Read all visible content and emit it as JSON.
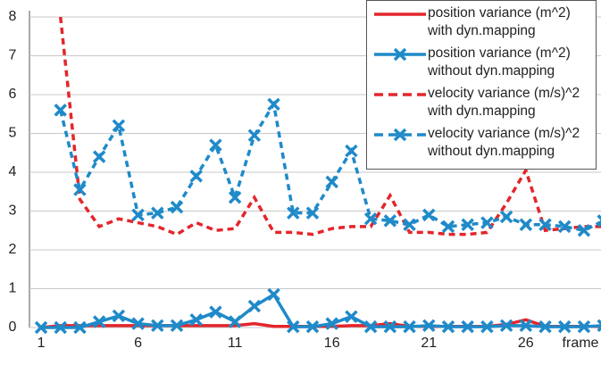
{
  "chart_data": {
    "type": "line",
    "x": [
      1,
      2,
      3,
      4,
      5,
      6,
      7,
      8,
      9,
      10,
      11,
      12,
      13,
      14,
      15,
      16,
      17,
      18,
      19,
      20,
      21,
      22,
      23,
      24,
      25,
      26,
      27,
      28,
      29,
      30
    ],
    "xlabel": "frame",
    "xlim": [
      0.4,
      30.2
    ],
    "xticks": [
      1,
      6,
      11,
      16,
      21,
      26
    ],
    "ylim": [
      0,
      8
    ],
    "yticks": [
      0,
      1,
      2,
      3,
      4,
      5,
      6,
      7,
      8
    ],
    "grid": true,
    "legend": "upper right",
    "series": [
      {
        "name": "position variance (m^2) with dyn.mapping",
        "color": "#e3262b",
        "style": "solid",
        "marker": "none",
        "values": [
          0,
          0.05,
          0.05,
          0.05,
          0.05,
          0.05,
          0.05,
          0.05,
          0.05,
          0.05,
          0.05,
          0.1,
          0.03,
          0.03,
          0.03,
          0.03,
          0.05,
          0.05,
          0.1,
          0.03,
          0.03,
          0.03,
          0.03,
          0.03,
          0.08,
          0.2,
          0.03,
          0.03,
          0.03,
          0.03
        ]
      },
      {
        "name": "position variance (m^2) without dyn.mapping",
        "color": "#1f8ac9",
        "style": "solid",
        "marker": "x",
        "values": [
          0,
          0,
          0,
          0.15,
          0.3,
          0.1,
          0.05,
          0.05,
          0.2,
          0.4,
          0.15,
          0.55,
          0.85,
          0.02,
          0.02,
          0.1,
          0.28,
          0.02,
          0.02,
          0.02,
          0.05,
          0.02,
          0.02,
          0.02,
          0.05,
          0.05,
          0.02,
          0.02,
          0.02,
          0.05
        ]
      },
      {
        "name": "velocity variance (m/s)^2 with dyn.mapping",
        "color": "#e3262b",
        "style": "dashed",
        "marker": "none",
        "values": [
          null,
          8,
          3.3,
          2.6,
          2.8,
          2.7,
          2.6,
          2.4,
          2.7,
          2.5,
          2.55,
          3.35,
          2.45,
          2.45,
          2.4,
          2.55,
          2.6,
          2.6,
          3.4,
          2.45,
          2.45,
          2.4,
          2.4,
          2.45,
          3.2,
          4.05,
          2.5,
          2.55,
          2.6,
          2.6
        ]
      },
      {
        "name": "velocity variance (m/s)^2 without dyn.mapping",
        "color": "#1f8ac9",
        "style": "dashed",
        "marker": "x",
        "values": [
          null,
          5.6,
          3.55,
          4.4,
          5.2,
          2.9,
          2.95,
          3.1,
          3.9,
          4.7,
          3.35,
          4.95,
          5.75,
          2.95,
          2.95,
          3.75,
          4.55,
          2.8,
          2.75,
          2.65,
          2.9,
          2.6,
          2.65,
          2.7,
          2.85,
          2.65,
          2.65,
          2.6,
          2.5,
          2.75
        ]
      }
    ]
  }
}
